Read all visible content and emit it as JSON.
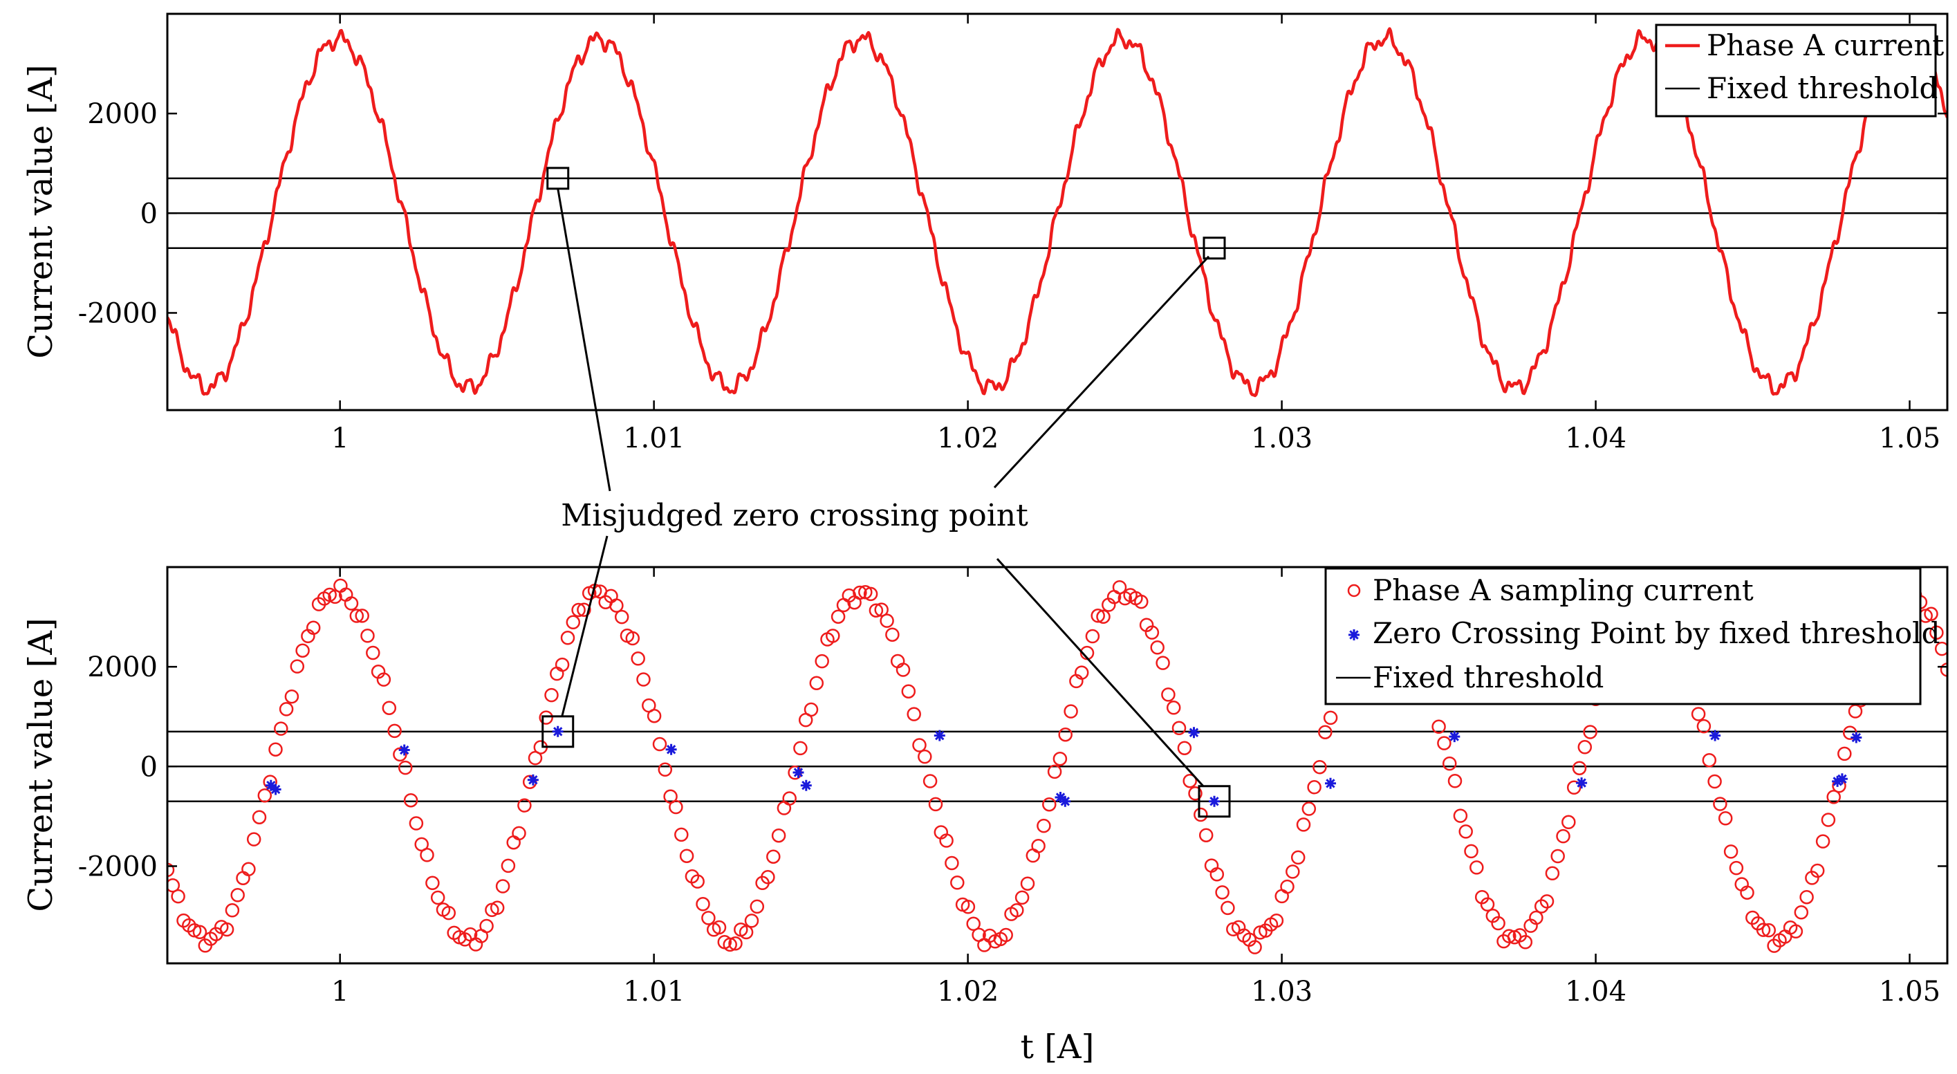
{
  "chart_data": [
    {
      "type": "line",
      "title": "",
      "ylabel": "Current value [A]",
      "xlabel": "",
      "xlim": [
        0.9945,
        1.0512
      ],
      "ylim": [
        -3950,
        4000
      ],
      "xticks": [
        1,
        1.01,
        1.02,
        1.03,
        1.04,
        1.05
      ],
      "xtick_labels": [
        "1",
        "1.01",
        "1.02",
        "1.03",
        "1.04",
        "1.05"
      ],
      "yticks": [
        -2000,
        0,
        2000
      ],
      "ytick_labels": [
        "-2000",
        "0",
        "2000"
      ],
      "series": [
        {
          "name": "Phase A current",
          "amplitude": 3500,
          "frequency_hz": 120,
          "phase_zero_x": 0.99785,
          "color": "#ee1c1c",
          "style": "line"
        },
        {
          "name": "Fixed threshold",
          "values": [
            700,
            0,
            -700
          ],
          "color": "#000000",
          "style": "hline"
        }
      ],
      "legend": {
        "position": "top-right",
        "entries": [
          "Phase A current",
          "Fixed threshold"
        ]
      },
      "highlight_boxes": [
        {
          "x": 1.00694,
          "y": 700
        },
        {
          "x": 1.02785,
          "y": -700
        }
      ]
    },
    {
      "type": "scatter",
      "title": "",
      "ylabel": "Current value [A]",
      "xlabel": "t [A]",
      "xlim": [
        0.9945,
        1.0512
      ],
      "ylim": [
        -3950,
        4000
      ],
      "xticks": [
        1,
        1.01,
        1.02,
        1.03,
        1.04,
        1.05
      ],
      "xtick_labels": [
        "1",
        "1.01",
        "1.02",
        "1.03",
        "1.04",
        "1.05"
      ],
      "yticks": [
        -2000,
        0,
        2000
      ],
      "ytick_labels": [
        "-2000",
        "0",
        "2000"
      ],
      "series": [
        {
          "name": "Phase A sampling current",
          "amplitude": 3500,
          "frequency_hz": 120,
          "phase_zero_x": 0.99785,
          "sample_count": 330,
          "color": "#ee1c1c",
          "marker": "circle"
        },
        {
          "name": "Zero Crossing Point by fixed threshold",
          "color": "#1a1adb",
          "marker": "asterisk",
          "points": [
            [
              0.9978,
              -380
            ],
            [
              0.99795,
              -460
            ],
            [
              1.00205,
              330
            ],
            [
              1.00615,
              -270
            ],
            [
              1.00694,
              700
            ],
            [
              1.01055,
              340
            ],
            [
              1.0146,
              -120
            ],
            [
              1.01485,
              -380
            ],
            [
              1.0191,
              620
            ],
            [
              1.02295,
              -620
            ],
            [
              1.0231,
              -700
            ],
            [
              1.0272,
              680
            ],
            [
              1.02785,
              -700
            ],
            [
              1.03155,
              -340
            ],
            [
              1.0355,
              600
            ],
            [
              1.03955,
              -330
            ],
            [
              1.0438,
              620
            ],
            [
              1.0477,
              -300
            ],
            [
              1.04785,
              -250
            ],
            [
              1.0483,
              580
            ]
          ]
        },
        {
          "name": "Fixed threshold",
          "values": [
            700,
            0,
            -700
          ],
          "color": "#000000",
          "style": "hline"
        }
      ],
      "legend": {
        "position": "top-right",
        "entries": [
          "Phase A sampling current",
          "Zero Crossing Point by fixed threshold",
          "Fixed threshold"
        ]
      },
      "highlight_boxes": [
        {
          "x": 1.00694,
          "y": 700
        },
        {
          "x": 1.02785,
          "y": -700
        }
      ]
    }
  ],
  "annotation": {
    "text": "Misjudged zero crossing point"
  }
}
